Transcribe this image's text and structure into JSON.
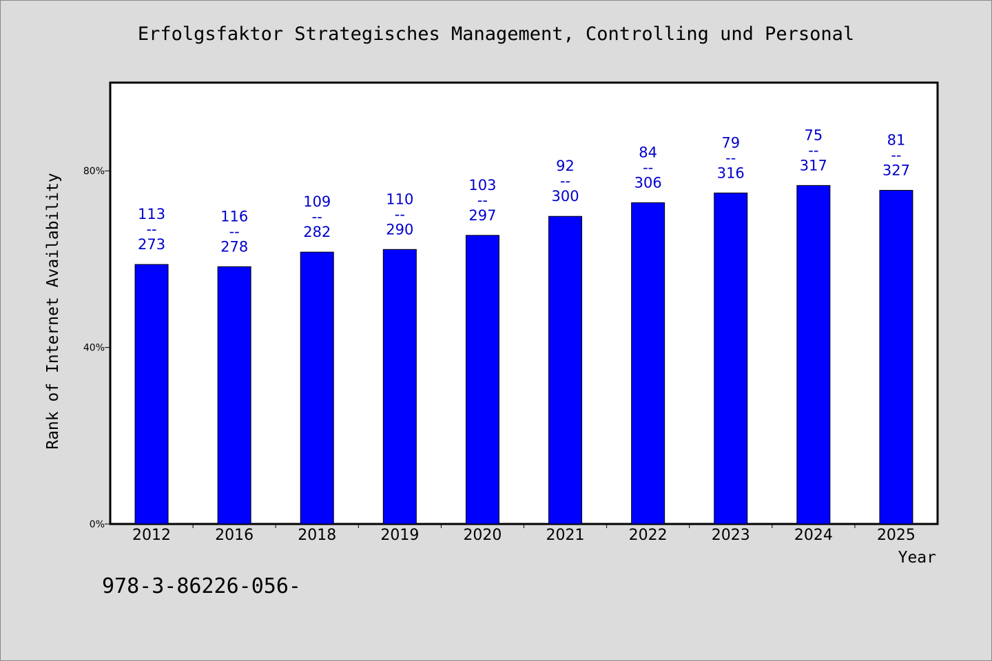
{
  "chart_data": {
    "type": "bar",
    "title": "Erfolgsfaktor Strategisches Management, Controlling und Personal",
    "xlabel": "Year",
    "ylabel": "Rank of Internet Availability",
    "ylim": [
      0,
      100
    ],
    "yticks": [
      "0%",
      "40%",
      "80%"
    ],
    "ytick_values": [
      0,
      40,
      80
    ],
    "categories": [
      "2012",
      "2016",
      "2018",
      "2019",
      "2020",
      "2021",
      "2022",
      "2023",
      "2024",
      "2025"
    ],
    "values": [
      58.8,
      58.3,
      61.6,
      62.2,
      65.4,
      69.7,
      72.8,
      75.0,
      76.7,
      75.6
    ],
    "labels_top": [
      "113",
      "116",
      "109",
      "110",
      "103",
      "92",
      "84",
      "79",
      "75",
      "81"
    ],
    "labels_sep": "--",
    "labels_bottom": [
      "273",
      "278",
      "282",
      "290",
      "297",
      "300",
      "306",
      "316",
      "317",
      "327"
    ],
    "bar_color": "#0000ff",
    "label_color": "#0000cc",
    "plot_background": "#ffffff",
    "grid": false
  },
  "footer": {
    "identifier": "978-3-86226-056-"
  }
}
